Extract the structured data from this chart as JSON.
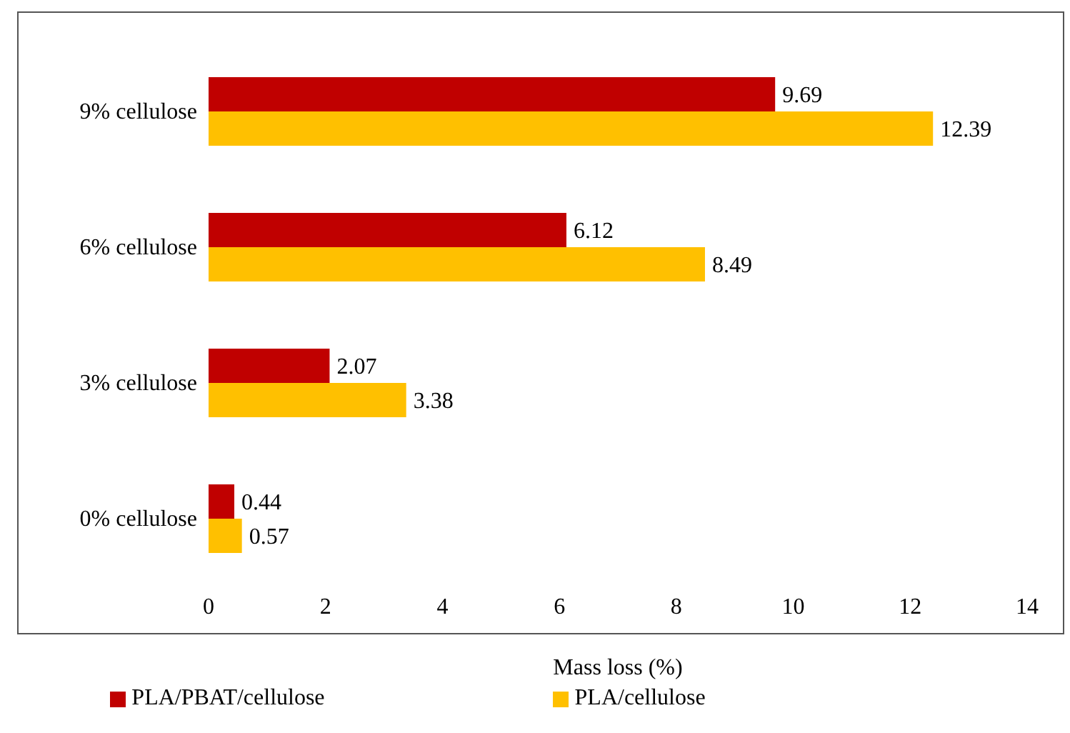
{
  "chart_data": {
    "type": "bar",
    "orientation": "horizontal",
    "xlabel": "Mass loss (%)",
    "categories": [
      "9% cellulose",
      "6% cellulose",
      "3% cellulose",
      "0% cellulose"
    ],
    "series": [
      {
        "name": "PLA/PBAT/cellulose",
        "color": "#c00000",
        "values": [
          9.69,
          6.12,
          2.07,
          0.44
        ]
      },
      {
        "name": "PLA/cellulose",
        "color": "#ffc000",
        "values": [
          12.39,
          8.49,
          3.38,
          0.57
        ]
      }
    ],
    "xlim": [
      0,
      14
    ],
    "xticks": [
      0,
      2,
      4,
      6,
      8,
      10,
      12,
      14
    ],
    "data_labels": true,
    "legend": "bottom",
    "grid": false
  }
}
